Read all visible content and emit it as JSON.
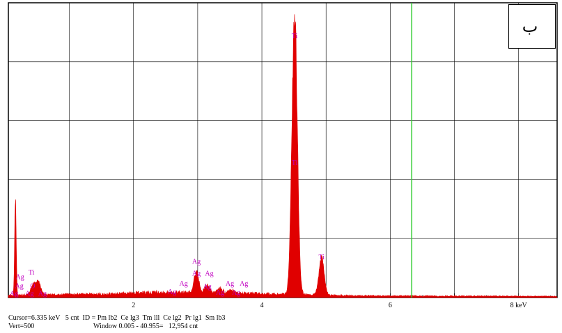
{
  "panel_label": "ب",
  "status": {
    "line1": "Cursor=6.335 keV   5 cnt  ID = Pm lb2  Ce lg3  Tm lll  Ce lg2  Pr lg1  Sm lb3",
    "line2_left": "Vert=500",
    "line2_right": "Window 0.005 - 40.955=   12,954 cnt"
  },
  "colors": {
    "spectrum": "#e00000",
    "peak_label": "#c000c0",
    "cursor": "#33cc33",
    "grid": "#000000"
  },
  "chart_data": {
    "type": "area",
    "xunit": "keV",
    "xlim": [
      0.05,
      8.6
    ],
    "ylim": [
      0,
      500
    ],
    "cursor_x": 6.335,
    "x_ticks": [
      {
        "value": 2,
        "label": "2"
      },
      {
        "value": 4,
        "label": "4"
      },
      {
        "value": 6,
        "label": "6"
      },
      {
        "value": 8,
        "label": "8 keV"
      }
    ],
    "peaks": [
      {
        "center": 0.16,
        "height": 165,
        "width": 0.012
      },
      {
        "center": 0.44,
        "height": 18,
        "width": 0.04
      },
      {
        "center": 0.52,
        "height": 20,
        "width": 0.035
      },
      {
        "center": 2.98,
        "height": 34,
        "width": 0.04
      },
      {
        "center": 3.15,
        "height": 14,
        "width": 0.04
      },
      {
        "center": 3.35,
        "height": 8,
        "width": 0.04
      },
      {
        "center": 3.52,
        "height": 6,
        "width": 0.04
      },
      {
        "center": 4.51,
        "height": 480,
        "width": 0.042
      },
      {
        "center": 4.93,
        "height": 64,
        "width": 0.04
      }
    ],
    "background": [
      {
        "x": 0.05,
        "y": 4
      },
      {
        "x": 1.5,
        "y": 6
      },
      {
        "x": 2.4,
        "y": 9
      },
      {
        "x": 3.7,
        "y": 7
      },
      {
        "x": 5.5,
        "y": 3
      },
      {
        "x": 8.6,
        "y": 2
      }
    ],
    "labels": [
      {
        "text": "Ti",
        "x": 4.51,
        "y": 440
      },
      {
        "text": "Ti",
        "x": 4.51,
        "y": 225
      },
      {
        "text": "Ti",
        "x": 4.93,
        "y": 65
      },
      {
        "text": "Ag",
        "x": 2.98,
        "y": 57
      },
      {
        "text": "Ag",
        "x": 2.98,
        "y": 37
      },
      {
        "text": "Ag",
        "x": 3.18,
        "y": 37
      },
      {
        "text": "Ag",
        "x": 2.78,
        "y": 20
      },
      {
        "text": "Ag",
        "x": 3.15,
        "y": 15
      },
      {
        "text": "Ag",
        "x": 2.6,
        "y": 6
      },
      {
        "text": "Ag",
        "x": 3.5,
        "y": 20
      },
      {
        "text": "Ag",
        "x": 3.72,
        "y": 20
      },
      {
        "text": "Ag",
        "x": 3.35,
        "y": 5
      },
      {
        "text": "Ag",
        "x": 3.6,
        "y": 5
      },
      {
        "text": "Ti",
        "x": 0.41,
        "y": 39
      },
      {
        "text": "Ag",
        "x": 0.23,
        "y": 31
      },
      {
        "text": "Ag",
        "x": 0.22,
        "y": 16
      },
      {
        "text": "O",
        "x": 0.43,
        "y": 16
      },
      {
        "text": "Ag",
        "x": 0.14,
        "y": 3
      },
      {
        "text": "Ag",
        "x": 0.38,
        "y": 3
      },
      {
        "text": "Ag",
        "x": 0.58,
        "y": 3
      }
    ]
  }
}
